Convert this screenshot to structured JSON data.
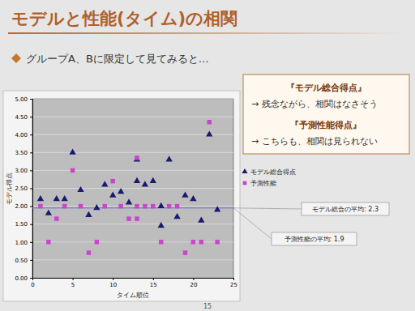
{
  "slide": {
    "title": "モデルと性能(タイム)の相関",
    "bullet": "グループA、Bに限定して見てみると…",
    "notes": [
      "『モデル総合得点』",
      "→ 残念ながら、相関はなさそう",
      "『予測性能得点』",
      "→ こちらも、相関は見られない"
    ],
    "page": "15"
  },
  "chart_data": {
    "type": "scatter",
    "x_label": "タイム順位",
    "y_label": "モデル得点",
    "xlim": [
      0,
      25
    ],
    "xticks": [
      0,
      5,
      10,
      15,
      20,
      25
    ],
    "ylim": [
      0,
      5
    ],
    "yticks": [
      {
        "value": 0,
        "label": "0.00"
      },
      {
        "value": 0.5,
        "label": "0.50"
      },
      {
        "value": 1,
        "label": "1.00"
      },
      {
        "value": 1.5,
        "label": "1.50"
      },
      {
        "value": 2,
        "label": "2.00"
      },
      {
        "value": 2.5,
        "label": "2.50"
      },
      {
        "value": 3,
        "label": "3.00"
      },
      {
        "value": 3.5,
        "label": "3.50"
      },
      {
        "value": 4,
        "label": "4.00"
      },
      {
        "value": 4.5,
        "label": "4.50"
      },
      {
        "value": 5,
        "label": "5.00"
      }
    ],
    "grid": true,
    "legend": "right",
    "series": [
      {
        "name": "モデル総合得点",
        "color": "#1a1a6e",
        "marker": "triangle",
        "x": [
          1,
          2,
          3,
          4,
          5,
          6,
          7,
          8,
          9,
          10,
          11,
          12,
          13,
          13,
          14,
          15,
          16,
          16,
          17,
          18,
          19,
          20,
          21,
          22,
          23
        ],
        "values": [
          2.2,
          1.8,
          2.2,
          2.2,
          3.5,
          2.45,
          1.75,
          1.95,
          2.6,
          2.3,
          2.4,
          2.1,
          2.7,
          3.3,
          2.6,
          2.7,
          1.45,
          2.0,
          3.3,
          1.7,
          2.3,
          2.2,
          1.6,
          4.0,
          1.9
        ]
      },
      {
        "name": "予測性能",
        "color": "#cc44cc",
        "marker": "square",
        "x": [
          1,
          2,
          3,
          4,
          5,
          6,
          7,
          8,
          9,
          10,
          11,
          12,
          13,
          13,
          13,
          14,
          15,
          16,
          17,
          18,
          19,
          20,
          21,
          22,
          23
        ],
        "values": [
          2.0,
          1.0,
          1.65,
          2.0,
          3.0,
          2.0,
          0.7,
          1.0,
          2.0,
          2.7,
          2.0,
          1.65,
          3.35,
          2.0,
          1.65,
          2.0,
          2.0,
          1.0,
          2.0,
          2.0,
          0.7,
          1.0,
          1.0,
          4.35,
          1.0
        ]
      }
    ],
    "reference_lines": [
      1.95
    ],
    "annotations": [
      {
        "text": "モデル総合の平均: 2.3"
      },
      {
        "text": "予測性能の平均: 1.9"
      }
    ]
  }
}
